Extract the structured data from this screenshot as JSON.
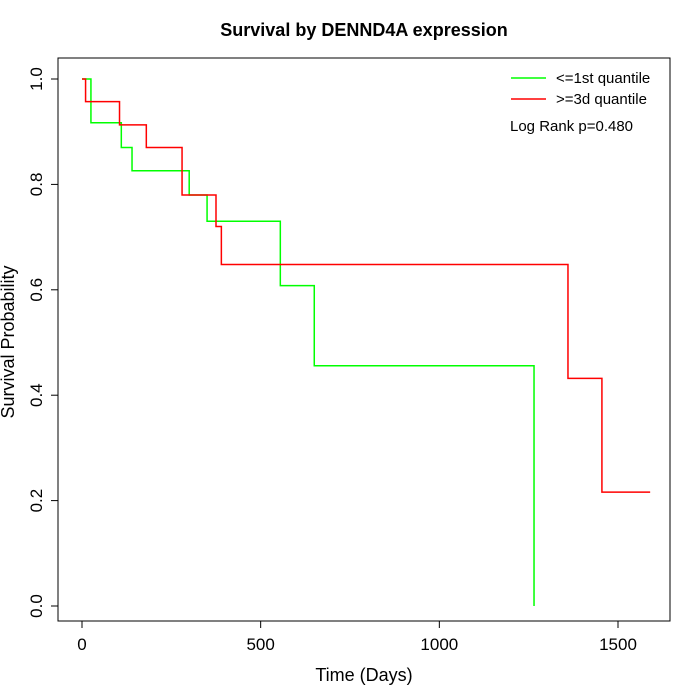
{
  "chart_data": {
    "type": "line",
    "subtype": "kaplan-meier step curve",
    "title": "Survival by DENND4A expression",
    "xlabel": "Time (Days)",
    "ylabel": "Survival Probability",
    "xlim": [
      0,
      1650
    ],
    "ylim": [
      0,
      1.0
    ],
    "x_ticks": [
      0,
      500,
      1000,
      1500
    ],
    "x_tick_labels": [
      "0",
      "500",
      "1000",
      "1500"
    ],
    "y_ticks": [
      0.0,
      0.2,
      0.4,
      0.6,
      0.8,
      1.0
    ],
    "y_tick_labels": [
      "0.0",
      "0.2",
      "0.4",
      "0.6",
      "0.8",
      "1.0"
    ],
    "grid": false,
    "legend_position": "top-right",
    "annotation": "Log Rank p=0.480",
    "series": [
      {
        "name": "<=1st quantile",
        "color": "#00ff00",
        "x": [
          0,
          25,
          110,
          140,
          300,
          350,
          555,
          650,
          1260,
          1265
        ],
        "y": [
          1.0,
          0.917,
          0.87,
          0.826,
          0.78,
          0.73,
          0.608,
          0.456,
          0.456,
          0.0
        ]
      },
      {
        "name": ">=3d quantile",
        "color": "#ff0000",
        "x": [
          0,
          10,
          105,
          180,
          280,
          375,
          390,
          1360,
          1455,
          1590
        ],
        "y": [
          1.0,
          0.957,
          0.913,
          0.87,
          0.78,
          0.72,
          0.648,
          0.432,
          0.216,
          0.216
        ]
      }
    ]
  }
}
